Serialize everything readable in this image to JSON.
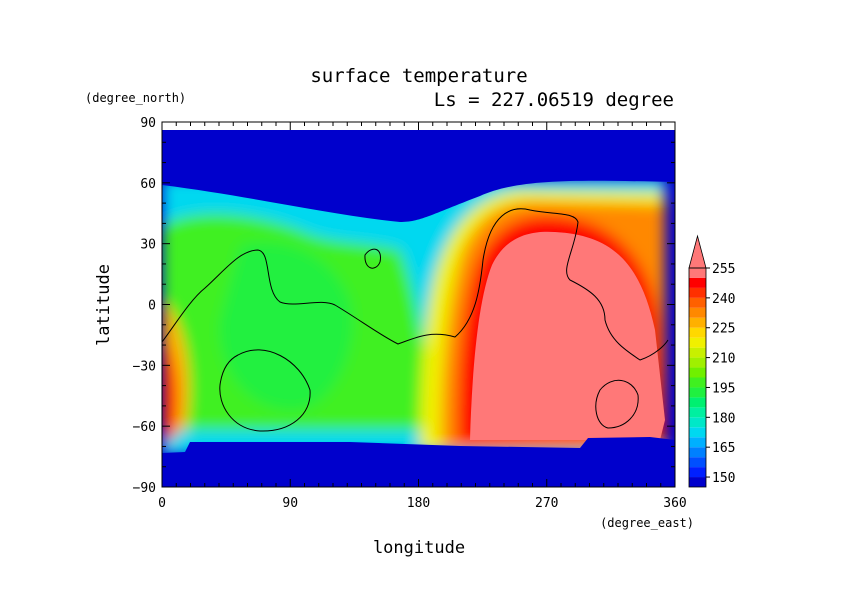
{
  "chart_data": {
    "type": "heatmap",
    "title": "surface temperature",
    "subtitle": "Ls = 227.06519 degree",
    "xlabel": "longitude",
    "ylabel": "latitude",
    "x_unit": "(degree_east)",
    "y_unit": "(degree_north)",
    "xlim": [
      0,
      360
    ],
    "ylim": [
      -90,
      90
    ],
    "x_ticks": [
      "0",
      "90",
      "180",
      "270",
      "360"
    ],
    "y_ticks": [
      "90",
      "60",
      "30",
      "0",
      "−30",
      "−60",
      "−90"
    ],
    "colorbar": {
      "levels": [
        145,
        150,
        155,
        160,
        165,
        170,
        175,
        180,
        185,
        190,
        195,
        200,
        205,
        210,
        215,
        220,
        225,
        230,
        235,
        240,
        245,
        250,
        255
      ],
      "labels": [
        "150",
        "165",
        "180",
        "195",
        "210",
        "225",
        "240",
        "255"
      ],
      "colors": [
        "#0000cc",
        "#0020ff",
        "#0050ff",
        "#0080ff",
        "#00b0ff",
        "#00d8f0",
        "#00e8c8",
        "#00f0a0",
        "#00f070",
        "#20f040",
        "#40f020",
        "#70f000",
        "#a0f000",
        "#c8f000",
        "#f0f000",
        "#ffd800",
        "#ffb000",
        "#ff8800",
        "#ff6000",
        "#ff3000",
        "#ff0000",
        "#ff7878"
      ],
      "extend": "max"
    }
  }
}
